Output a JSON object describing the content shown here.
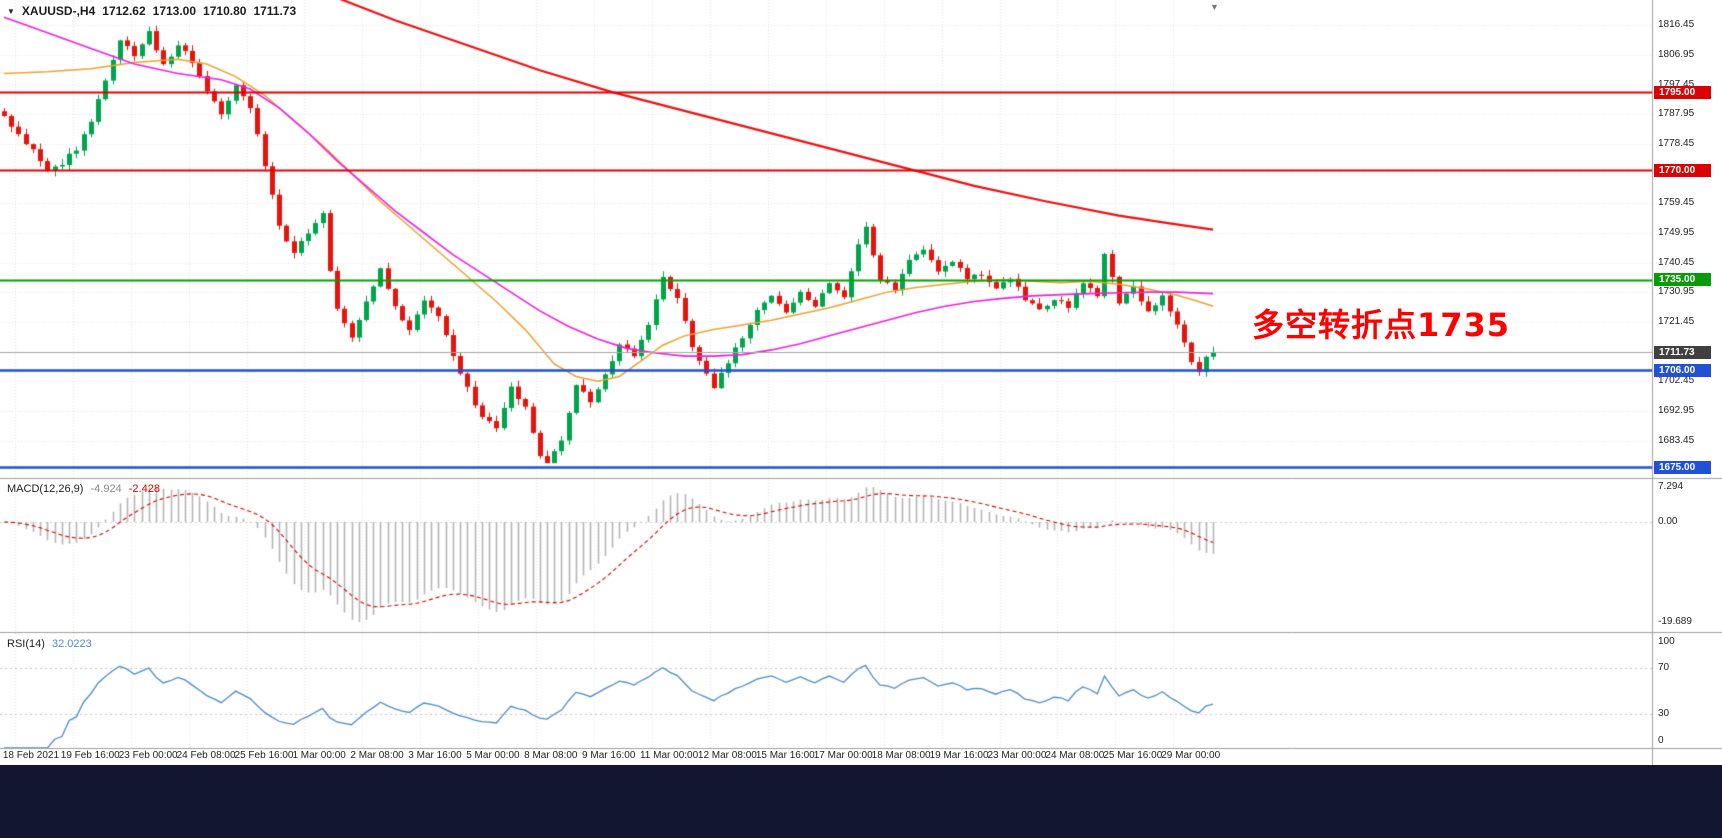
{
  "header": {
    "collapse_icon": "▼",
    "symbol": "XAUUSD-,H4",
    "open": "1712.62",
    "high": "1713.00",
    "low": "1710.80",
    "close": "1711.73"
  },
  "misc": {
    "chart_shift_icon": "▼"
  },
  "chart_data": {
    "type": "candlestick",
    "symbol": "XAUUSD-",
    "timeframe": "H4",
    "title": "XAUUSD-,H4 1712.62 1713.00 1710.80 1711.73",
    "price_axis": {
      "min": 1671.5,
      "max": 1824.5,
      "ticks": [
        "1816.45",
        "1806.95",
        "1797.45",
        "1787.95",
        "1778.45",
        "1768.95",
        "1759.45",
        "1749.95",
        "1740.45",
        "1730.95",
        "1721.45",
        "1711.95",
        "1702.45",
        "1692.95",
        "1683.45"
      ]
    },
    "time_axis": [
      "18 Feb 2021",
      "19 Feb 16:00",
      "23 Feb 00:00",
      "24 Feb 08:00",
      "25 Feb 16:00",
      "1 Mar 00:00",
      "2 Mar 08:00",
      "3 Mar 16:00",
      "5 Mar 00:00",
      "8 Mar 08:00",
      "9 Mar 16:00",
      "11 Mar 00:00",
      "12 Mar 08:00",
      "15 Mar 16:00",
      "17 Mar 00:00",
      "18 Mar 08:00",
      "19 Mar 16:00",
      "23 Mar 00:00",
      "24 Mar 08:00",
      "25 Mar 16:00",
      "29 Mar 00:00"
    ],
    "horizontal_levels": [
      {
        "price": 1795.0,
        "label": "1795.00",
        "color": "#dd0202",
        "width": 2,
        "type": "resistance"
      },
      {
        "price": 1770.0,
        "label": "1770.00",
        "color": "#dd0202",
        "width": 2,
        "type": "resistance"
      },
      {
        "price": 1735.0,
        "label": "1735.00",
        "color": "#0a9b0a",
        "width": 2,
        "type": "pivot"
      },
      {
        "price": 1706.0,
        "label": "1706.00",
        "color": "#2051d8",
        "width": 2.4,
        "type": "support"
      },
      {
        "price": 1675.0,
        "label": "1675.00",
        "color": "#2051d8",
        "width": 2.4,
        "type": "support"
      }
    ],
    "current_price": {
      "value": 1711.73,
      "label": "1711.73",
      "box_color": "#404040",
      "line_color": "#a6a6a6"
    },
    "annotation": {
      "text": "多空转折点1735",
      "color": "#ff0000"
    },
    "candles": {
      "count": 168,
      "up_color": "#00a44d",
      "down_color": "#e8130c",
      "close_path": [
        [
          0,
          1787
        ],
        [
          2,
          1782
        ],
        [
          4,
          1776
        ],
        [
          6,
          1770
        ],
        [
          8,
          1772
        ],
        [
          10,
          1777
        ],
        [
          12,
          1786
        ],
        [
          14,
          1799
        ],
        [
          16,
          1812
        ],
        [
          18,
          1806
        ],
        [
          20,
          1814
        ],
        [
          22,
          1804
        ],
        [
          24,
          1810
        ],
        [
          26,
          1805
        ],
        [
          28,
          1795
        ],
        [
          30,
          1788
        ],
        [
          32,
          1797
        ],
        [
          34,
          1790
        ],
        [
          36,
          1772
        ],
        [
          38,
          1752
        ],
        [
          40,
          1744
        ],
        [
          42,
          1750
        ],
        [
          44,
          1756
        ],
        [
          45,
          1738
        ],
        [
          46,
          1726
        ],
        [
          48,
          1717
        ],
        [
          50,
          1728
        ],
        [
          52,
          1739
        ],
        [
          54,
          1726
        ],
        [
          56,
          1719
        ],
        [
          58,
          1729
        ],
        [
          60,
          1723
        ],
        [
          62,
          1711
        ],
        [
          64,
          1700
        ],
        [
          66,
          1691
        ],
        [
          68,
          1688
        ],
        [
          70,
          1700
        ],
        [
          72,
          1694
        ],
        [
          74,
          1679
        ],
        [
          75,
          1677
        ],
        [
          77,
          1683
        ],
        [
          79,
          1701
        ],
        [
          81,
          1696
        ],
        [
          83,
          1704
        ],
        [
          85,
          1715
        ],
        [
          87,
          1711
        ],
        [
          89,
          1721
        ],
        [
          91,
          1736
        ],
        [
          93,
          1729
        ],
        [
          95,
          1714
        ],
        [
          97,
          1705
        ],
        [
          98,
          1700
        ],
        [
          100,
          1709
        ],
        [
          102,
          1717
        ],
        [
          104,
          1725
        ],
        [
          106,
          1730
        ],
        [
          108,
          1725
        ],
        [
          110,
          1731
        ],
        [
          112,
          1727
        ],
        [
          114,
          1734
        ],
        [
          116,
          1729
        ],
        [
          118,
          1747
        ],
        [
          119,
          1752
        ],
        [
          121,
          1735
        ],
        [
          123,
          1732
        ],
        [
          125,
          1741
        ],
        [
          127,
          1745
        ],
        [
          129,
          1737
        ],
        [
          131,
          1741
        ],
        [
          133,
          1735
        ],
        [
          135,
          1737
        ],
        [
          137,
          1732
        ],
        [
          139,
          1735
        ],
        [
          141,
          1729
        ],
        [
          143,
          1725
        ],
        [
          145,
          1729
        ],
        [
          147,
          1726
        ],
        [
          149,
          1734
        ],
        [
          151,
          1730
        ],
        [
          152,
          1743
        ],
        [
          154,
          1728
        ],
        [
          156,
          1732
        ],
        [
          158,
          1725
        ],
        [
          160,
          1730
        ],
        [
          162,
          1721
        ],
        [
          164,
          1708
        ],
        [
          165,
          1706
        ],
        [
          166,
          1711
        ],
        [
          167,
          1711.73
        ]
      ]
    },
    "overlays": [
      {
        "name": "ma-fast-orange",
        "color": "#eda22f",
        "width": 1.5,
        "path": [
          [
            0,
            1801
          ],
          [
            6,
            1801.5
          ],
          [
            12,
            1802.5
          ],
          [
            18,
            1804.5
          ],
          [
            24,
            1805.5
          ],
          [
            28,
            1804
          ],
          [
            32,
            1800
          ],
          [
            36,
            1794
          ],
          [
            40,
            1786
          ],
          [
            44,
            1778
          ],
          [
            48,
            1769
          ],
          [
            52,
            1760
          ],
          [
            56,
            1752
          ],
          [
            60,
            1744
          ],
          [
            64,
            1736
          ],
          [
            68,
            1728
          ],
          [
            72,
            1719
          ],
          [
            76,
            1708
          ],
          [
            79,
            1704
          ],
          [
            82,
            1702.5
          ],
          [
            85,
            1704
          ],
          [
            88,
            1709
          ],
          [
            91,
            1714
          ],
          [
            94,
            1717
          ],
          [
            98,
            1719
          ],
          [
            102,
            1720.5
          ],
          [
            106,
            1722
          ],
          [
            110,
            1724
          ],
          [
            114,
            1726
          ],
          [
            118,
            1728.5
          ],
          [
            122,
            1731
          ],
          [
            126,
            1732.5
          ],
          [
            130,
            1733.5
          ],
          [
            134,
            1734.5
          ],
          [
            138,
            1735
          ],
          [
            142,
            1734.5
          ],
          [
            146,
            1734
          ],
          [
            150,
            1734.5
          ],
          [
            154,
            1733.5
          ],
          [
            158,
            1732
          ],
          [
            162,
            1730
          ],
          [
            165,
            1728
          ],
          [
            167,
            1726.5
          ]
        ]
      },
      {
        "name": "ma-mid-magenta",
        "color": "#ee22dd",
        "width": 1.6,
        "path": [
          [
            0,
            1819
          ],
          [
            6,
            1814
          ],
          [
            12,
            1809
          ],
          [
            18,
            1804
          ],
          [
            24,
            1801
          ],
          [
            30,
            1799
          ],
          [
            34,
            1796
          ],
          [
            38,
            1790
          ],
          [
            42,
            1782
          ],
          [
            46,
            1773
          ],
          [
            50,
            1765
          ],
          [
            54,
            1757
          ],
          [
            58,
            1750
          ],
          [
            62,
            1743
          ],
          [
            66,
            1737
          ],
          [
            70,
            1731
          ],
          [
            74,
            1725
          ],
          [
            78,
            1720
          ],
          [
            82,
            1716
          ],
          [
            86,
            1713
          ],
          [
            90,
            1711.5
          ],
          [
            94,
            1710.5
          ],
          [
            98,
            1710.5
          ],
          [
            102,
            1711
          ],
          [
            106,
            1712.5
          ],
          [
            110,
            1714.5
          ],
          [
            114,
            1717
          ],
          [
            118,
            1719.5
          ],
          [
            122,
            1722
          ],
          [
            126,
            1724.5
          ],
          [
            130,
            1726.5
          ],
          [
            134,
            1728
          ],
          [
            138,
            1729
          ],
          [
            142,
            1729.8
          ],
          [
            146,
            1730.2
          ],
          [
            150,
            1730.5
          ],
          [
            154,
            1730.8
          ],
          [
            158,
            1731
          ],
          [
            162,
            1731
          ],
          [
            167,
            1730.5
          ]
        ]
      },
      {
        "name": "ma-slow-red",
        "color": "#ee1111",
        "width": 2.2,
        "path": [
          [
            44,
            1827
          ],
          [
            54,
            1818
          ],
          [
            64,
            1810
          ],
          [
            74,
            1802
          ],
          [
            84,
            1795
          ],
          [
            94,
            1789
          ],
          [
            104,
            1783
          ],
          [
            114,
            1777
          ],
          [
            124,
            1771
          ],
          [
            134,
            1765
          ],
          [
            144,
            1760
          ],
          [
            154,
            1755.5
          ],
          [
            161,
            1753
          ],
          [
            167,
            1751
          ]
        ]
      }
    ],
    "macd": {
      "label": "MACD(12,26,9)",
      "value_main": "-4.924",
      "value_signal": "-2.428",
      "axis": [
        "7.294",
        "0.00",
        "-19.689"
      ],
      "hist_color": "#b6b6b6",
      "signal_color": "#dd0000",
      "params": {
        "fast": 12,
        "slow": 26,
        "signal": 9
      }
    },
    "rsi": {
      "label": "RSI(14)",
      "value": "32.0223",
      "axis": [
        "100",
        "70",
        "30",
        "0"
      ],
      "period": 14,
      "levels": [
        70,
        30
      ],
      "color": "#4e8cc9"
    }
  }
}
